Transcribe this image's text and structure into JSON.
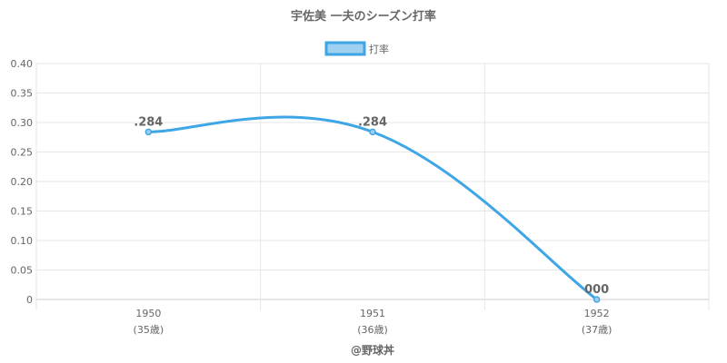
{
  "chart_data": {
    "type": "line",
    "title": "宇佐美 一夫のシーズン打率",
    "categories": [
      "1950",
      "1951",
      "1952"
    ],
    "category_sublabels": [
      "(35歳)",
      "(36歳)",
      "(37歳)"
    ],
    "series": [
      {
        "name": "打率",
        "values": [
          0.284,
          0.284,
          0.0
        ],
        "value_labels": [
          ".284",
          ".284",
          "000"
        ],
        "color": "#3ea6e6",
        "fill_color": "#9fd0f0"
      }
    ],
    "y_ticks": [
      "0",
      "0.05",
      "0.10",
      "0.15",
      "0.20",
      "0.25",
      "0.30",
      "0.35",
      "0.40"
    ],
    "ylim": [
      0,
      0.4
    ],
    "grid": true,
    "legend_position": "top"
  },
  "credit": "@野球丼",
  "colors": {
    "grid": "#e6e6e6",
    "axis": "#cccccc",
    "text": "#666666"
  }
}
